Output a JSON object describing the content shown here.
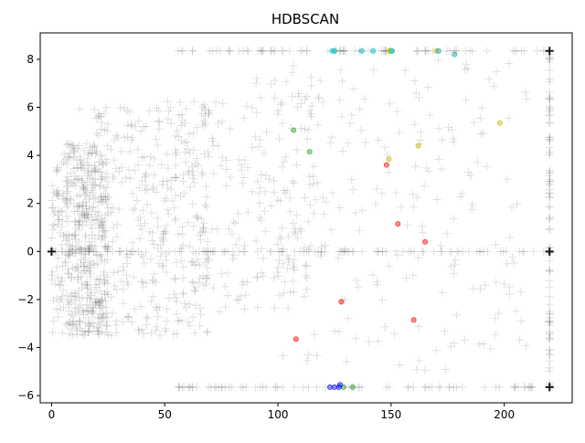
{
  "chart_data": {
    "type": "scatter",
    "title": "HDBSCAN",
    "xlabel": "",
    "ylabel": "",
    "xlim": [
      -5,
      230
    ],
    "ylim": [
      -6.3,
      9.1
    ],
    "x_ticks": [
      0,
      50,
      100,
      150,
      200
    ],
    "y_ticks": [
      -6,
      -4,
      -2,
      0,
      2,
      4,
      6,
      8
    ],
    "x_tick_labels": [
      "0",
      "50",
      "100",
      "150",
      "200"
    ],
    "y_tick_labels": [
      "−6",
      "−4",
      "−2",
      "0",
      "2",
      "4",
      "6",
      "8"
    ],
    "grid": false,
    "legend": "none",
    "noise": {
      "marker": "plus",
      "color": "#000000",
      "alpha": 0.12,
      "strong_points": [
        [
          0,
          0
        ],
        [
          220,
          0
        ],
        [
          220,
          8.35
        ],
        [
          220,
          -5.65
        ]
      ],
      "regions": [
        {
          "xr": [
            0,
            25
          ],
          "yr": [
            -3.5,
            4.5
          ],
          "n": 420,
          "yscale": 1.0
        },
        {
          "xr": [
            10,
            70
          ],
          "yr": [
            -3.5,
            6.0
          ],
          "n": 380,
          "yscale": 1.0
        },
        {
          "xr": [
            50,
            120
          ],
          "yr": [
            -2.5,
            6.5
          ],
          "n": 200,
          "yscale": 1.0
        },
        {
          "xr": [
            90,
            210
          ],
          "yr": [
            -5.0,
            8.0
          ],
          "n": 230,
          "yscale": 1.0
        }
      ],
      "bands": [
        {
          "y": 0,
          "xr": [
            0,
            220
          ],
          "n": 110
        },
        {
          "y": 8.35,
          "xr": [
            55,
            220
          ],
          "n": 80
        },
        {
          "y": -5.65,
          "xr": [
            55,
            220
          ],
          "n": 75
        },
        {
          "x": 220,
          "yr": [
            -5.65,
            8.35
          ],
          "n": 90
        }
      ]
    },
    "clusters": [
      {
        "color": "#00bfbf",
        "points": [
          [
            124,
            8.35
          ],
          [
            125,
            8.35
          ],
          [
            137,
            8.35
          ],
          [
            142,
            8.35
          ],
          [
            150,
            8.35
          ],
          [
            150.5,
            8.35
          ]
        ]
      },
      {
        "color": "#bfbf00",
        "points": [
          [
            149,
            8.35
          ],
          [
            170,
            8.35
          ],
          [
            198,
            5.35
          ],
          [
            162,
            4.4
          ],
          [
            149,
            3.85
          ]
        ]
      },
      {
        "color": "#17a2b8",
        "points": [
          [
            171,
            8.35
          ],
          [
            178,
            8.2
          ]
        ]
      },
      {
        "color": "#2ca02c",
        "points": [
          [
            107,
            5.05
          ],
          [
            114,
            4.15
          ],
          [
            133,
            -5.65
          ],
          [
            129,
            -5.65
          ]
        ]
      },
      {
        "color": "#ff0000",
        "points": [
          [
            153,
            1.15
          ],
          [
            165,
            0.4
          ],
          [
            148,
            3.6
          ],
          [
            128,
            -2.1
          ],
          [
            160,
            -2.85
          ],
          [
            108,
            -3.65
          ]
        ]
      },
      {
        "color": "#0000ff",
        "points": [
          [
            123,
            -5.65
          ],
          [
            125,
            -5.65
          ],
          [
            127,
            -5.65
          ],
          [
            127.5,
            -5.55
          ]
        ]
      }
    ]
  }
}
